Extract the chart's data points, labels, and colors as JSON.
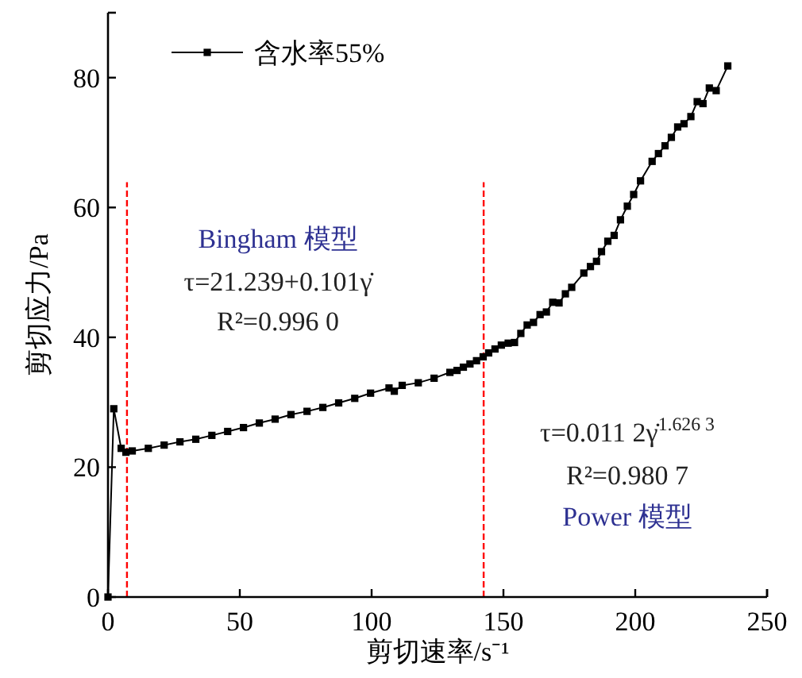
{
  "chart_data": {
    "type": "line",
    "xlabel": "剪切速率/s⁻¹",
    "ylabel": "剪切应力/Pa",
    "xlim": [
      0,
      250
    ],
    "xticks": [
      0,
      50,
      100,
      150,
      200,
      250
    ],
    "ylim": [
      0,
      90
    ],
    "yticks": [
      0,
      20,
      40,
      60,
      80
    ],
    "grid": false,
    "legend": "top left",
    "marker": "square",
    "line_style": "solid",
    "series": [
      {
        "name": "含水率55%",
        "color": "#000000",
        "x": [
          0,
          2.2,
          5.0,
          6.8,
          9.2,
          15.3,
          21.3,
          27.3,
          33.3,
          39.4,
          45.4,
          51.4,
          57.4,
          63.4,
          69.4,
          75.5,
          81.5,
          87.5,
          93.6,
          99.6,
          106.6,
          108.6,
          111.6,
          117.7,
          123.7,
          129.7,
          132.4,
          134.8,
          137.3,
          139.8,
          142.3,
          144.4,
          146.8,
          149.2,
          151.8,
          154.2,
          156.6,
          159.0,
          161.4,
          163.9,
          166.3,
          168.7,
          171.1,
          173.5,
          175.9,
          180.5,
          183.0,
          185.3,
          187.2,
          189.6,
          192.0,
          194.4,
          197.0,
          199.4,
          202.0,
          206.4,
          208.8,
          211.3,
          213.7,
          216.1,
          218.5,
          221.1,
          223.5,
          225.7,
          228.1,
          230.7,
          235.1
        ],
        "values": [
          0,
          29.0,
          22.9,
          22.3,
          22.5,
          22.9,
          23.4,
          23.9,
          24.3,
          24.9,
          25.5,
          26.1,
          26.8,
          27.4,
          28.1,
          28.6,
          29.2,
          29.9,
          30.6,
          31.4,
          32.2,
          31.7,
          32.6,
          33.0,
          33.7,
          34.6,
          34.9,
          35.4,
          35.9,
          36.4,
          37.0,
          37.6,
          38.2,
          38.8,
          39.1,
          39.2,
          40.6,
          41.9,
          42.3,
          43.5,
          43.9,
          45.4,
          45.3,
          46.7,
          47.7,
          49.9,
          50.9,
          51.7,
          53.2,
          54.8,
          55.7,
          58.1,
          60.2,
          62.0,
          64.1,
          67.1,
          68.3,
          69.5,
          70.8,
          72.4,
          72.9,
          74.0,
          76.3,
          76.0,
          78.4,
          78.0,
          81.8
        ]
      }
    ],
    "ref_lines": [
      {
        "axis": "x",
        "value": 7.2,
        "color": "#ff0000",
        "line_style": "dashed"
      },
      {
        "axis": "x",
        "value": 142.5,
        "color": "#ff0000",
        "line_style": "dashed"
      }
    ],
    "annotations": [
      "Bingham 模型",
      "τ=21.239+0.101γ̇",
      "R²=0.996 0",
      "τ=0.011 2γ̇$^{1.626 3}$",
      "R²=0.980 7",
      "Power 模型"
    ]
  }
}
